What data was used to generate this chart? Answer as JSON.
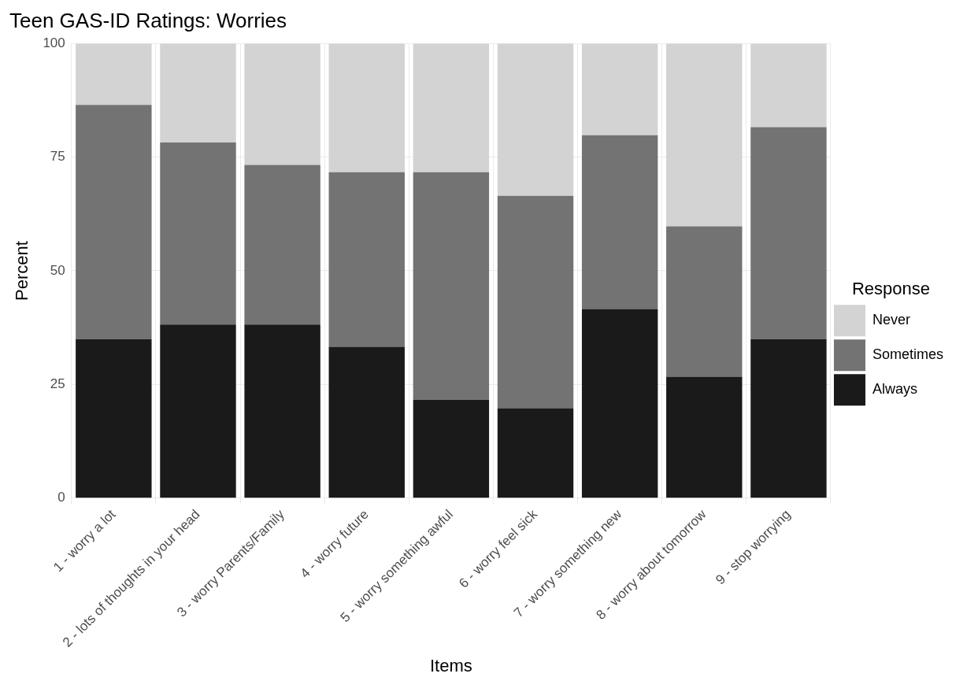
{
  "chart_data": {
    "type": "bar",
    "title": "Teen GAS-ID Ratings: Worries",
    "xlabel": "Items",
    "ylabel": "Percent",
    "legend_title": "Response",
    "categories": [
      "1 - worry a lot",
      "2 - lots of thoughts in your head",
      "3 - worry Parents/Family",
      "4 - worry future",
      "5 - worry something awful",
      "6 - worry feel sick",
      "7 - worry something new",
      "8 - worry about tomorrow",
      "9 - stop worrying"
    ],
    "series": [
      {
        "name": "Always",
        "color": "#1a1a1a",
        "values": [
          35.0,
          38.2,
          38.2,
          33.3,
          21.6,
          19.8,
          41.6,
          26.7,
          35.0
        ]
      },
      {
        "name": "Sometimes",
        "color": "#737373",
        "values": [
          51.5,
          40.0,
          35.1,
          38.4,
          50.1,
          46.7,
          38.2,
          33.1,
          46.6
        ]
      },
      {
        "name": "Never",
        "color": "#d3d3d3",
        "values": [
          13.5,
          21.8,
          26.7,
          28.3,
          28.3,
          33.5,
          20.2,
          40.2,
          18.4
        ]
      }
    ],
    "stacked": true,
    "ylim": [
      0,
      100
    ],
    "yticks": [
      0,
      25,
      50,
      75,
      100
    ],
    "grid": true,
    "legend": "right"
  }
}
